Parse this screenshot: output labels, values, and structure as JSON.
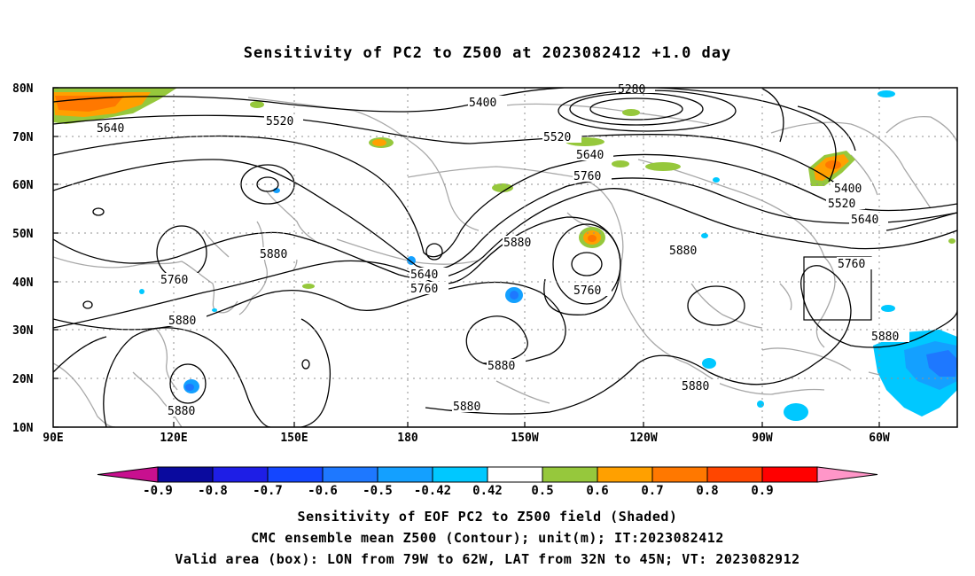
{
  "title": "Sensitivity of PC2 to Z500 at 2023082412 +1.0 day",
  "axes": {
    "lat_labels": [
      "80N",
      "70N",
      "60N",
      "50N",
      "40N",
      "30N",
      "20N",
      "10N"
    ],
    "lon_labels": [
      "90E",
      "120E",
      "150E",
      "180",
      "150W",
      "120W",
      "90W",
      "60W"
    ]
  },
  "contour_labels": [
    "5280",
    "5400",
    "5400",
    "5520",
    "5520",
    "5520",
    "5640",
    "5640",
    "5640",
    "5640",
    "5760",
    "5760",
    "5760",
    "5760",
    "5760",
    "5880",
    "5880",
    "5880",
    "5880",
    "5880",
    "5880",
    "5880",
    "5880",
    "5880"
  ],
  "colorbar": {
    "labels": [
      "-0.9",
      "-0.8",
      "-0.7",
      "-0.6",
      "-0.5",
      "-0.42",
      "0.42",
      "0.5",
      "0.6",
      "0.7",
      "0.8",
      "0.9"
    ],
    "colors": [
      "#c8108f",
      "#0a0a9e",
      "#1e1ee6",
      "#1446ff",
      "#1e78ff",
      "#14a0ff",
      "#00c8ff",
      "#ffffff",
      "#96c83c",
      "#ffa000",
      "#ff7800",
      "#ff4600",
      "#ff0000",
      "#ff96c8"
    ]
  },
  "valid_box": {
    "lon_min": -79,
    "lon_max": -62,
    "lat_min": 32,
    "lat_max": 45
  },
  "footer": {
    "line1": "Sensitivity of EOF PC2 to Z500 field (Shaded)",
    "line2": "CMC ensemble mean Z500 (Contour); unit(m); IT:2023082412",
    "line3": "Valid area (box): LON from 79W to 62W, LAT from 32N to 45N; VT: 2023082912"
  }
}
